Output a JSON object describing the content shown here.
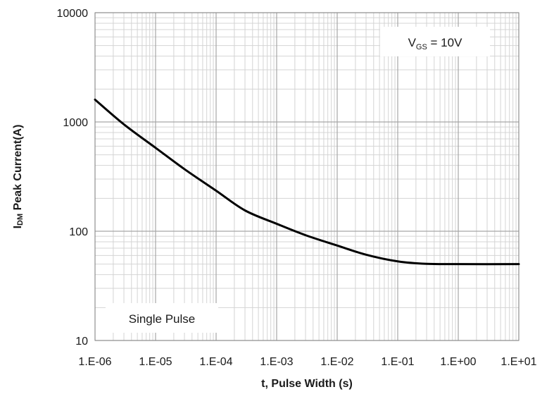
{
  "chart_data": {
    "type": "line",
    "title": "",
    "xlabel": "t, Pulse Width (s)",
    "ylabel": {
      "prefix": "I",
      "subscript": "DM",
      "suffix": " Peak Current(A)"
    },
    "x_scale": "log",
    "y_scale": "log",
    "xlim": [
      1e-06,
      10
    ],
    "ylim": [
      10,
      10000
    ],
    "x_tick_labels": [
      "1.E-06",
      "1.E-05",
      "1.E-04",
      "1.E-03",
      "1.E-02",
      "1.E-01",
      "1.E+00",
      "1.E+01"
    ],
    "y_tick_labels": [
      "10",
      "100",
      "1000",
      "10000"
    ],
    "grid": "major and minor",
    "annotations": {
      "condition": {
        "prefix": "V",
        "subscript": "GS",
        "suffix": " = 10V"
      },
      "note": "Single Pulse"
    },
    "series": [
      {
        "color": "#000000",
        "x": [
          1e-06,
          3e-06,
          1e-05,
          3e-05,
          0.0001,
          0.0003,
          0.001,
          0.003,
          0.01,
          0.03,
          0.1,
          0.3,
          1,
          10
        ],
        "y": [
          1600,
          950,
          580,
          370,
          235,
          155,
          117,
          92,
          74,
          61,
          53,
          50.3,
          50,
          50
        ]
      }
    ]
  }
}
